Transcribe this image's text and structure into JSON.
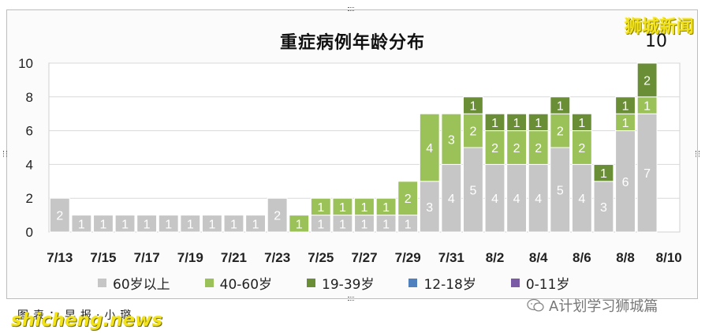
{
  "watermark_text": "狮城新闻",
  "top_value_label": "10",
  "source_text": "图表：早报·小璐",
  "brand_text": "shicheng.news",
  "wechat_account": "A计划学习狮城篇",
  "colors": {
    "60岁以上": "#c6c6c6",
    "40-60岁": "#9bc259",
    "19-39岁": "#6a8e35",
    "12-18岁": "#4e81bd",
    "0-11岁": "#7b5aa6",
    "watermark": "#f2e21a"
  },
  "chart_data": {
    "type": "bar",
    "stacked": true,
    "title": "重症病例年龄分布",
    "ylim": [
      0,
      10
    ],
    "yticks": [
      0,
      2,
      4,
      6,
      8,
      10
    ],
    "grid": true,
    "legend_position": "bottom",
    "categories": [
      "7/13",
      "7/14",
      "7/15",
      "7/16",
      "7/17",
      "7/18",
      "7/19",
      "7/20",
      "7/21",
      "7/22",
      "7/23",
      "7/24",
      "7/25",
      "7/26",
      "7/27",
      "7/28",
      "7/29",
      "7/30",
      "7/31",
      "8/1",
      "8/2",
      "8/3",
      "8/4",
      "8/5",
      "8/6",
      "8/7",
      "8/8",
      "8/9",
      "8/10"
    ],
    "xtick_labels": [
      "7/13",
      "7/15",
      "7/17",
      "7/19",
      "7/21",
      "7/23",
      "7/25",
      "7/27",
      "7/29",
      "7/31",
      "8/2",
      "8/4",
      "8/6",
      "8/8",
      "8/10"
    ],
    "series": [
      {
        "name": "60岁以上",
        "values": [
          2,
          1,
          1,
          1,
          1,
          1,
          1,
          1,
          1,
          1,
          2,
          0,
          1,
          1,
          1,
          1,
          1,
          3,
          4,
          5,
          4,
          4,
          4,
          5,
          4,
          3,
          6,
          7,
          0
        ]
      },
      {
        "name": "40-60岁",
        "values": [
          0,
          0,
          0,
          0,
          0,
          0,
          0,
          0,
          0,
          0,
          0,
          1,
          1,
          1,
          1,
          1,
          2,
          4,
          3,
          2,
          2,
          2,
          2,
          2,
          2,
          0,
          1,
          1,
          0
        ]
      },
      {
        "name": "19-39岁",
        "values": [
          0,
          0,
          0,
          0,
          0,
          0,
          0,
          0,
          0,
          0,
          0,
          0,
          0,
          0,
          0,
          0,
          0,
          0,
          0,
          1,
          1,
          1,
          1,
          1,
          1,
          1,
          1,
          2,
          0
        ]
      },
      {
        "name": "12-18岁",
        "values": [
          0,
          0,
          0,
          0,
          0,
          0,
          0,
          0,
          0,
          0,
          0,
          0,
          0,
          0,
          0,
          0,
          0,
          0,
          0,
          0,
          0,
          0,
          0,
          0,
          0,
          0,
          0,
          0,
          0
        ]
      },
      {
        "name": "0-11岁",
        "values": [
          0,
          0,
          0,
          0,
          0,
          0,
          0,
          0,
          0,
          0,
          0,
          0,
          0,
          0,
          0,
          0,
          0,
          0,
          0,
          0,
          0,
          0,
          0,
          0,
          0,
          0,
          0,
          0,
          0
        ]
      }
    ]
  }
}
